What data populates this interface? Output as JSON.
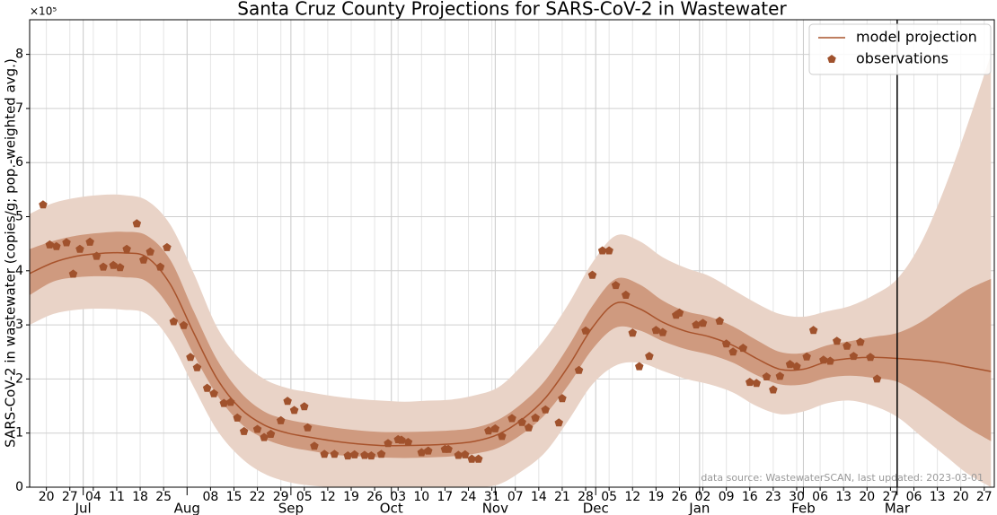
{
  "chart_data": {
    "type": "line",
    "title": "Santa Cruz County Projections for SARS-CoV-2 in Wastewater",
    "y_label": "SARS-CoV-2 in wastewater (copies/g; pop.-weighted avg.)",
    "y_offset_label": "×10⁵",
    "source_note": "data source: WastewaterSCAN, last updated: 2023-03-01",
    "xlim": [
      "06-15",
      "03-30"
    ],
    "ylim": [
      0,
      8.64
    ],
    "yticks": [
      0,
      1,
      2,
      3,
      4,
      5,
      6,
      7,
      8
    ],
    "xticks": [
      {
        "value": "06-20",
        "label": "20"
      },
      {
        "value": "06-27",
        "label": "27"
      },
      {
        "value": "07-04",
        "label": "04"
      },
      {
        "value": "07-11",
        "label": "11"
      },
      {
        "value": "07-18",
        "label": "18"
      },
      {
        "value": "07-25",
        "label": "25"
      },
      {
        "value": "08-08",
        "label": "08"
      },
      {
        "value": "08-15",
        "label": "15"
      },
      {
        "value": "08-22",
        "label": "22"
      },
      {
        "value": "08-29",
        "label": "29"
      },
      {
        "value": "09-05",
        "label": "05"
      },
      {
        "value": "09-12",
        "label": "12"
      },
      {
        "value": "09-19",
        "label": "19"
      },
      {
        "value": "09-26",
        "label": "26"
      },
      {
        "value": "10-03",
        "label": "03"
      },
      {
        "value": "10-10",
        "label": "10"
      },
      {
        "value": "10-17",
        "label": "17"
      },
      {
        "value": "10-24",
        "label": "24"
      },
      {
        "value": "10-31",
        "label": "31"
      },
      {
        "value": "11-07",
        "label": "07"
      },
      {
        "value": "11-14",
        "label": "14"
      },
      {
        "value": "11-21",
        "label": "21"
      },
      {
        "value": "11-28",
        "label": "28"
      },
      {
        "value": "12-05",
        "label": "05"
      },
      {
        "value": "12-12",
        "label": "12"
      },
      {
        "value": "12-19",
        "label": "19"
      },
      {
        "value": "12-26",
        "label": "26"
      },
      {
        "value": "01-02",
        "label": "02"
      },
      {
        "value": "01-09",
        "label": "09"
      },
      {
        "value": "01-16",
        "label": "16"
      },
      {
        "value": "01-23",
        "label": "23"
      },
      {
        "value": "01-30",
        "label": "30"
      },
      {
        "value": "02-06",
        "label": "06"
      },
      {
        "value": "02-13",
        "label": "13"
      },
      {
        "value": "02-20",
        "label": "20"
      },
      {
        "value": "02-27",
        "label": "27"
      },
      {
        "value": "03-06",
        "label": "06"
      },
      {
        "value": "03-13",
        "label": "13"
      },
      {
        "value": "03-20",
        "label": "20"
      },
      {
        "value": "03-27",
        "label": "27"
      }
    ],
    "month_ticks": [
      {
        "value": "07-01",
        "label": "Jul"
      },
      {
        "value": "08-01",
        "label": "Aug"
      },
      {
        "value": "09-01",
        "label": "Sep"
      },
      {
        "value": "10-01",
        "label": "Oct"
      },
      {
        "value": "11-01",
        "label": "Nov"
      },
      {
        "value": "12-01",
        "label": "Dec"
      },
      {
        "value": "01-01",
        "label": "Jan"
      },
      {
        "value": "02-01",
        "label": "Feb"
      },
      {
        "value": "03-01",
        "label": "Mar"
      }
    ],
    "grid": true,
    "legend": "upper right",
    "vline": "03-01",
    "x": [
      "06-15",
      "06-22",
      "06-29",
      "07-06",
      "07-13",
      "07-20",
      "07-27",
      "08-03",
      "08-10",
      "08-17",
      "08-24",
      "08-31",
      "09-07",
      "09-14",
      "09-21",
      "09-28",
      "10-05",
      "10-12",
      "10-19",
      "10-26",
      "11-02",
      "11-09",
      "11-16",
      "11-23",
      "11-30",
      "12-07",
      "12-14",
      "12-21",
      "12-28",
      "01-04",
      "01-11",
      "01-18",
      "01-25",
      "02-01",
      "02-08",
      "02-15",
      "02-22",
      "03-01",
      "03-08",
      "03-15",
      "03-22",
      "03-29"
    ],
    "bands": [
      {
        "color": "#e9d3c7",
        "lower": [
          3.0,
          3.2,
          3.28,
          3.3,
          3.28,
          3.2,
          2.7,
          1.85,
          1.05,
          0.55,
          0.25,
          0.1,
          0.03,
          0,
          0,
          0,
          0,
          0,
          0,
          0,
          0.05,
          0.3,
          0.65,
          1.25,
          1.9,
          2.25,
          2.3,
          2.15,
          2.0,
          1.9,
          1.75,
          1.5,
          1.35,
          1.4,
          1.55,
          1.6,
          1.5,
          1.3,
          0.95,
          0.6,
          0.25,
          0
        ],
        "upper": [
          5.05,
          5.25,
          5.35,
          5.4,
          5.4,
          5.3,
          4.85,
          3.95,
          2.95,
          2.35,
          2.0,
          1.83,
          1.75,
          1.68,
          1.63,
          1.6,
          1.58,
          1.6,
          1.62,
          1.7,
          1.85,
          2.25,
          2.75,
          3.4,
          4.15,
          4.65,
          4.55,
          4.25,
          4.05,
          3.9,
          3.65,
          3.4,
          3.2,
          3.15,
          3.25,
          3.35,
          3.55,
          3.85,
          4.5,
          5.5,
          6.7,
          8.0
        ]
      },
      {
        "color": "#cf9a7f",
        "lower": [
          3.55,
          3.8,
          3.88,
          3.9,
          3.88,
          3.8,
          3.3,
          2.45,
          1.7,
          1.18,
          0.9,
          0.75,
          0.67,
          0.6,
          0.57,
          0.55,
          0.54,
          0.55,
          0.57,
          0.62,
          0.73,
          0.98,
          1.35,
          1.9,
          2.55,
          2.95,
          2.9,
          2.7,
          2.55,
          2.45,
          2.3,
          2.07,
          1.9,
          1.9,
          2.02,
          2.06,
          2.02,
          1.95,
          1.7,
          1.4,
          1.1,
          0.85
        ],
        "upper": [
          4.4,
          4.55,
          4.65,
          4.7,
          4.72,
          4.65,
          4.2,
          3.25,
          2.35,
          1.75,
          1.4,
          1.25,
          1.17,
          1.1,
          1.05,
          1.02,
          1.02,
          1.03,
          1.05,
          1.1,
          1.25,
          1.55,
          1.98,
          2.62,
          3.35,
          3.85,
          3.75,
          3.45,
          3.25,
          3.15,
          2.97,
          2.72,
          2.5,
          2.48,
          2.62,
          2.7,
          2.78,
          2.85,
          3.05,
          3.35,
          3.65,
          3.85
        ]
      }
    ],
    "series": [
      {
        "name": "model projection",
        "color": "#a8532c",
        "values": [
          3.95,
          4.15,
          4.27,
          4.32,
          4.33,
          4.25,
          3.75,
          2.85,
          2.0,
          1.45,
          1.15,
          1.0,
          0.92,
          0.85,
          0.8,
          0.77,
          0.77,
          0.78,
          0.8,
          0.85,
          0.98,
          1.25,
          1.65,
          2.25,
          2.95,
          3.4,
          3.3,
          3.05,
          2.88,
          2.78,
          2.62,
          2.38,
          2.18,
          2.18,
          2.32,
          2.38,
          2.4,
          2.38,
          2.35,
          2.3,
          2.22,
          2.14
        ]
      },
      {
        "name": "observations",
        "color": "#a0522d",
        "marker": "pentagon",
        "x": [
          "06-19",
          "06-21",
          "06-23",
          "06-26",
          "06-28",
          "06-30",
          "07-03",
          "07-05",
          "07-07",
          "07-10",
          "07-12",
          "07-14",
          "07-17",
          "07-19",
          "07-21",
          "07-24",
          "07-26",
          "07-28",
          "07-31",
          "08-02",
          "08-04",
          "08-07",
          "08-09",
          "08-12",
          "08-14",
          "08-16",
          "08-18",
          "08-22",
          "08-24",
          "08-26",
          "08-29",
          "08-31",
          "09-02",
          "09-05",
          "09-06",
          "09-08",
          "09-11",
          "09-14",
          "09-18",
          "09-20",
          "09-23",
          "09-25",
          "09-28",
          "09-30",
          "10-03",
          "10-04",
          "10-06",
          "10-10",
          "10-12",
          "10-17",
          "10-18",
          "10-21",
          "10-23",
          "10-25",
          "10-27",
          "10-30",
          "11-01",
          "11-03",
          "11-06",
          "11-09",
          "11-11",
          "11-13",
          "11-16",
          "11-20",
          "11-21",
          "11-26",
          "11-28",
          "11-30",
          "12-03",
          "12-05",
          "12-07",
          "12-10",
          "12-12",
          "12-14",
          "12-17",
          "12-19",
          "12-21",
          "12-25",
          "12-26",
          "12-31",
          "01-02",
          "01-07",
          "01-09",
          "01-11",
          "01-14",
          "01-16",
          "01-18",
          "01-21",
          "01-23",
          "01-25",
          "01-28",
          "01-30",
          "02-02",
          "02-04",
          "02-07",
          "02-09",
          "02-11",
          "02-14",
          "02-16",
          "02-18",
          "02-21",
          "02-23"
        ],
        "values": [
          5.22,
          4.48,
          4.45,
          4.52,
          3.94,
          4.4,
          4.53,
          4.27,
          4.07,
          4.1,
          4.06,
          4.4,
          4.87,
          4.2,
          4.35,
          4.07,
          4.43,
          3.06,
          2.99,
          2.4,
          2.21,
          1.83,
          1.73,
          1.55,
          1.57,
          1.28,
          1.03,
          1.07,
          0.92,
          0.98,
          1.23,
          1.59,
          1.42,
          1.49,
          1.1,
          0.76,
          0.61,
          0.61,
          0.58,
          0.6,
          0.59,
          0.58,
          0.61,
          0.81,
          0.88,
          0.87,
          0.83,
          0.64,
          0.67,
          0.7,
          0.7,
          0.59,
          0.6,
          0.52,
          0.52,
          1.04,
          1.08,
          0.94,
          1.27,
          1.2,
          1.1,
          1.28,
          1.43,
          1.19,
          1.64,
          2.16,
          2.89,
          3.92,
          4.37,
          4.37,
          3.73,
          3.55,
          2.85,
          2.23,
          2.42,
          2.9,
          2.86,
          3.18,
          3.22,
          3.0,
          3.03,
          3.07,
          2.65,
          2.5,
          2.57,
          1.94,
          1.92,
          2.04,
          1.8,
          2.05,
          2.27,
          2.23,
          2.41,
          2.9,
          2.35,
          2.33,
          2.7,
          2.61,
          2.42,
          2.68,
          2.4,
          2.0
        ]
      }
    ]
  }
}
